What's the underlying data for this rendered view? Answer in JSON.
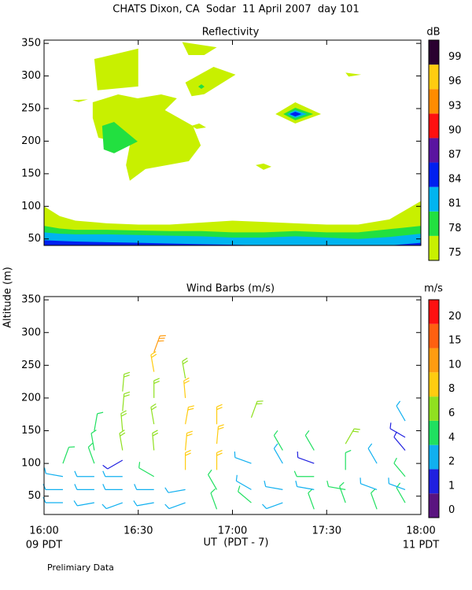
{
  "title": "CHATS Dixon, CA  Sodar  11 April 2007  day 101",
  "ylabel": "Altitude (m)",
  "xlabel": "UT  (PDT - 7)",
  "left_note": "09 PDT",
  "right_note": "11 PDT",
  "footnote": "Prelimiary Data",
  "chart_data": [
    {
      "type": "contour",
      "title": "Reflectivity",
      "ylim": [
        40,
        355
      ],
      "xlim": [
        960,
        1080
      ],
      "yticks": [
        50,
        100,
        150,
        200,
        250,
        300,
        350
      ],
      "colorbar": {
        "label": "dB",
        "levels": [
          75,
          78,
          81,
          84,
          87,
          90,
          93,
          96,
          99
        ],
        "colors": [
          "#c8f000",
          "#22e040",
          "#00b4f0",
          "#0020f0",
          "#5a14a0",
          "#ff1010",
          "#ff8c00",
          "#ffcc10",
          "#2a0030"
        ]
      },
      "bands": [
        {
          "level": 75,
          "x": [
            960,
            965,
            970,
            980,
            990,
            1000,
            1010,
            1020,
            1030,
            1040,
            1050,
            1060,
            1070,
            1080
          ],
          "y": [
            100,
            85,
            78,
            74,
            72,
            72,
            75,
            78,
            76,
            74,
            72,
            72,
            80,
            108
          ]
        },
        {
          "level": 78,
          "x": [
            960,
            965,
            970,
            980,
            990,
            1000,
            1010,
            1020,
            1030,
            1040,
            1050,
            1060,
            1070,
            1080
          ],
          "y": [
            70,
            66,
            64,
            64,
            63,
            62,
            62,
            60,
            60,
            62,
            60,
            60,
            65,
            70
          ]
        },
        {
          "level": 81,
          "x": [
            960,
            965,
            970,
            980,
            990,
            1000,
            1010,
            1020,
            1030,
            1040,
            1050,
            1060,
            1070,
            1080
          ],
          "y": [
            60,
            58,
            57,
            57,
            56,
            55,
            54,
            52,
            52,
            54,
            52,
            50,
            53,
            58
          ]
        },
        {
          "level": 84,
          "x": [
            960,
            965,
            970,
            980,
            990,
            1000,
            1010,
            1020,
            1030,
            1040,
            1050,
            1060,
            1070,
            1080
          ],
          "y": [
            48,
            47,
            46,
            45,
            44,
            43,
            42,
            41,
            40,
            40,
            40,
            40,
            40,
            44
          ]
        }
      ],
      "regions": [
        {
          "level": 75,
          "x": [
            976,
            990,
            990,
            977
          ],
          "y": [
            326,
            342,
            284,
            278
          ]
        },
        {
          "level": 75,
          "x": [
            1004,
            1015,
            1011,
            1006
          ],
          "y": [
            352,
            344,
            332,
            332
          ]
        },
        {
          "level": 75,
          "x": [
            1005,
            1014,
            1021,
            1011,
            1007
          ],
          "y": [
            290,
            314,
            302,
            272,
            269
          ]
        },
        {
          "level": 75,
          "x": [
            1056,
            1061,
            1057
          ],
          "y": [
            305,
            302,
            299
          ]
        },
        {
          "level": 75,
          "x": [
            969,
            974,
            971
          ],
          "y": [
            263,
            264,
            260
          ]
        },
        {
          "level": 75,
          "x": [
            975.5,
            983.6,
            989.8,
            997.3,
            1002.3,
            998.5,
            1007.4,
            1009.9,
            1006.1,
            992.3,
            987.3,
            986.1,
            987.3,
            977.3,
            975.5
          ],
          "y": [
            259.6,
            271.7,
            265.7,
            271.7,
            265.7,
            247.6,
            223.5,
            193.4,
            169.3,
            157.2,
            139.2,
            163.3,
            193.4,
            205.4,
            235.5
          ]
        },
        {
          "level": 78,
          "x": [
            978.5,
            982.3,
            989.8,
            982.3,
            979
          ],
          "y": [
            223.5,
            229.5,
            199.4,
            181.3,
            187.3
          ]
        },
        {
          "level": 75,
          "x": [
            1006.9,
            1009.4,
            1011.6,
            1008.6
          ],
          "y": [
            223.5,
            227.1,
            221.1,
            218.7
          ]
        },
        {
          "level": 75,
          "x": [
            1027.4,
            1029.9,
            1032.4,
            1029.9
          ],
          "y": [
            163.3,
            165.7,
            160.8,
            156
          ]
        },
        {
          "level": 78,
          "x": [
            1009.1,
            1010.1,
            1011.1,
            1010.1
          ],
          "y": [
            283.7,
            287.3,
            283.7,
            280.1
          ]
        },
        {
          "level": 75,
          "x": [
            1033.7,
            1040,
            1048.2,
            1040
          ],
          "y": [
            241.6,
            259.6,
            241.6,
            227.1
          ]
        },
        {
          "level": 78,
          "x": [
            1036.2,
            1040,
            1045.7,
            1040
          ],
          "y": [
            241.6,
            251.2,
            241.6,
            232
          ]
        },
        {
          "level": 81,
          "x": [
            1037.4,
            1040,
            1043.7,
            1040
          ],
          "y": [
            241.6,
            247.6,
            241.6,
            235.5
          ]
        },
        {
          "level": 84,
          "x": [
            1038.2,
            1040,
            1042,
            1040
          ],
          "y": [
            241.6,
            245.2,
            241.6,
            238
          ]
        }
      ]
    },
    {
      "type": "barbs",
      "title": "Wind Barbs (m/s)",
      "ylim": [
        22,
        355
      ],
      "xlim": [
        960,
        1080
      ],
      "yticks": [
        50,
        100,
        150,
        200,
        250,
        300,
        350
      ],
      "xticks": [
        {
          "value": 960,
          "label": "16:00"
        },
        {
          "value": 990,
          "label": "16:30"
        },
        {
          "value": 1020,
          "label": "17:00"
        },
        {
          "value": 1050,
          "label": "17:30"
        },
        {
          "value": 1080,
          "label": "18:00"
        }
      ],
      "colorbar": {
        "label": "m/s",
        "levels": [
          0,
          1,
          2,
          4,
          6,
          8,
          10,
          15,
          20
        ],
        "colors": [
          "#5a1480",
          "#2020e0",
          "#10b0f0",
          "#20e060",
          "#90e020",
          "#ffcc10",
          "#ff9c10",
          "#ff6010",
          "#ff1010"
        ]
      },
      "x": [
        966,
        966,
        966,
        966,
        976,
        976,
        976,
        976,
        976,
        976,
        985,
        985,
        985,
        985,
        985,
        985,
        985,
        985,
        995,
        995,
        995,
        995,
        995,
        995,
        995,
        995,
        1005,
        1005,
        1005,
        1005,
        1005,
        1005,
        1005,
        1015,
        1015,
        1015,
        1015,
        1015,
        1026,
        1026,
        1026,
        1026,
        1036,
        1036,
        1036,
        1036,
        1046,
        1046,
        1046,
        1046,
        1046,
        1056,
        1056,
        1056,
        1056,
        1066,
        1066,
        1066,
        1075,
        1075,
        1075,
        1075,
        1075,
        1075
      ],
      "altitude": [
        40,
        60,
        80,
        100,
        40,
        60,
        80,
        100,
        120,
        150,
        40,
        60,
        80,
        105,
        120,
        150,
        180,
        210,
        40,
        60,
        80,
        120,
        160,
        200,
        240,
        270,
        40,
        60,
        90,
        120,
        160,
        200,
        230,
        30,
        60,
        90,
        130,
        160,
        40,
        60,
        100,
        170,
        40,
        60,
        100,
        120,
        30,
        60,
        80,
        100,
        120,
        40,
        60,
        90,
        130,
        30,
        60,
        100,
        40,
        60,
        80,
        120,
        140,
        165
      ],
      "speed": [
        3,
        3,
        3,
        5,
        3,
        3,
        3,
        4,
        5,
        5,
        3,
        3,
        3,
        1,
        6,
        6,
        7,
        7,
        3,
        3,
        4,
        6,
        6,
        7,
        9,
        12,
        3,
        3,
        9,
        8,
        8,
        8,
        7,
        4,
        4,
        9,
        9,
        8,
        4,
        3,
        3,
        7,
        3,
        3,
        3,
        5,
        4,
        3,
        5,
        1,
        5,
        4,
        4,
        5,
        6,
        4,
        3,
        3,
        4,
        3,
        5,
        1,
        1,
        3
      ],
      "direction": [
        270,
        270,
        280,
        20,
        260,
        270,
        270,
        340,
        350,
        10,
        250,
        270,
        270,
        240,
        350,
        355,
        5,
        5,
        260,
        270,
        300,
        355,
        350,
        0,
        350,
        20,
        250,
        260,
        0,
        5,
        10,
        355,
        350,
        340,
        330,
        0,
        5,
        0,
        310,
        300,
        290,
        20,
        250,
        280,
        330,
        330,
        340,
        280,
        270,
        290,
        330,
        340,
        280,
        0,
        30,
        340,
        290,
        330,
        330,
        290,
        320,
        320,
        300,
        330
      ]
    }
  ]
}
